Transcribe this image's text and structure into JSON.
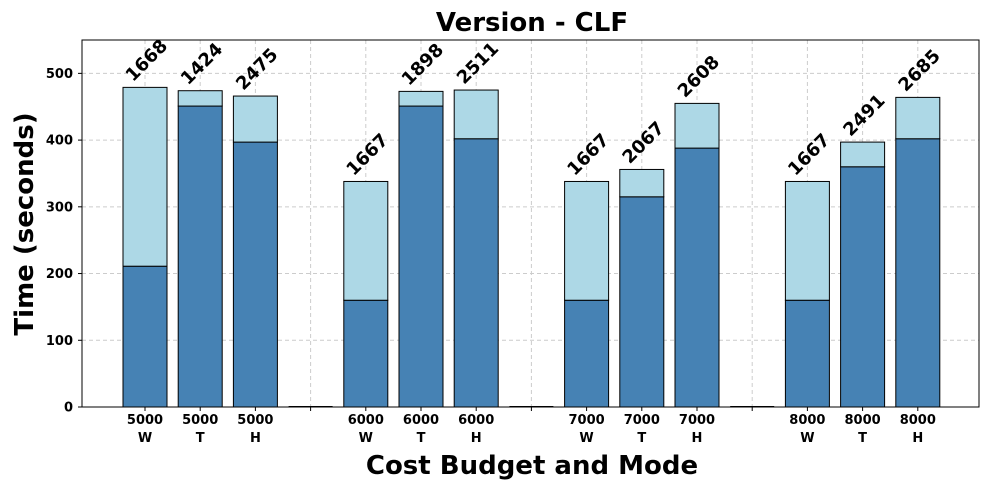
{
  "chart_data": {
    "type": "bar",
    "stacked": true,
    "title": "Version - CLF",
    "xlabel": "Cost Budget and Mode",
    "ylabel": "Time (seconds)",
    "ylim": [
      0,
      550
    ],
    "yticks": [
      0,
      100,
      200,
      300,
      400,
      500
    ],
    "grid": true,
    "colors": {
      "bottom": "#4682b4",
      "top": "#add8e6",
      "edge": "#000000",
      "grid": "#cccccc"
    },
    "slots": [
      {
        "budget": "5000",
        "mode": "W",
        "bottom": 211,
        "total": 479,
        "label": "1668"
      },
      {
        "budget": "5000",
        "mode": "T",
        "bottom": 451,
        "total": 474,
        "label": "1424"
      },
      {
        "budget": "5000",
        "mode": "H",
        "bottom": 397,
        "total": 466,
        "label": "2475"
      },
      {
        "separator": true
      },
      {
        "budget": "6000",
        "mode": "W",
        "bottom": 160,
        "total": 338,
        "label": "1667"
      },
      {
        "budget": "6000",
        "mode": "T",
        "bottom": 451,
        "total": 473,
        "label": "1898"
      },
      {
        "budget": "6000",
        "mode": "H",
        "bottom": 402,
        "total": 475,
        "label": "2511"
      },
      {
        "separator": true
      },
      {
        "budget": "7000",
        "mode": "W",
        "bottom": 160,
        "total": 338,
        "label": "1667"
      },
      {
        "budget": "7000",
        "mode": "T",
        "bottom": 315,
        "total": 356,
        "label": "2067"
      },
      {
        "budget": "7000",
        "mode": "H",
        "bottom": 388,
        "total": 455,
        "label": "2608"
      },
      {
        "separator": true
      },
      {
        "budget": "8000",
        "mode": "W",
        "bottom": 160,
        "total": 338,
        "label": "1667"
      },
      {
        "budget": "8000",
        "mode": "T",
        "bottom": 360,
        "total": 397,
        "label": "2491"
      },
      {
        "budget": "8000",
        "mode": "H",
        "bottom": 402,
        "total": 464,
        "label": "2685"
      }
    ]
  }
}
